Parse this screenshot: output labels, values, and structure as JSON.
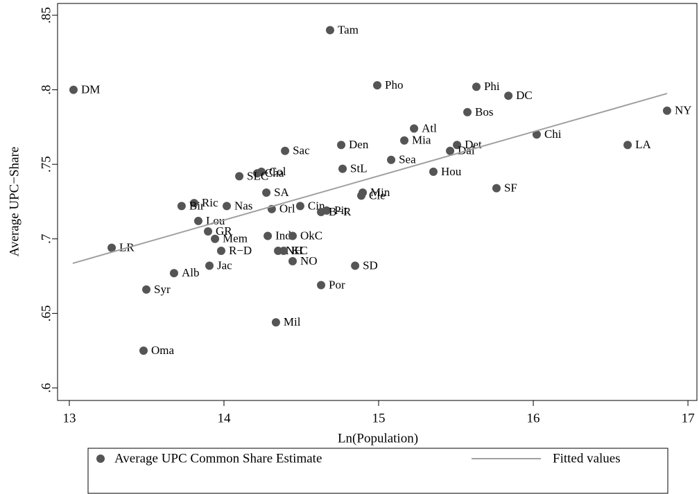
{
  "chart_data": {
    "type": "scatter",
    "x_label": "Ln(Population)",
    "y_label": "Average UPC−Share",
    "xlim": [
      12.924,
      17.058
    ],
    "ylim": [
      0.5916,
      0.8579
    ],
    "xticks": [
      13,
      14,
      15,
      16,
      17
    ],
    "yticks": [
      {
        "value": 0.6,
        "label": ".6"
      },
      {
        "value": 0.65,
        "label": ".65"
      },
      {
        "value": 0.7,
        "label": ".7"
      },
      {
        "value": 0.75,
        "label": ".75"
      },
      {
        "value": 0.8,
        "label": ".8"
      },
      {
        "value": 0.85,
        "label": ".85"
      }
    ],
    "series": [
      {
        "name": "Average UPC Common Share Estimate",
        "type": "scatter",
        "color": "#555555",
        "labels": [
          "Tam",
          "DM",
          "Pho",
          "Phi",
          "DC",
          "Bos",
          "NY",
          "Atl",
          "Mia",
          "Chi",
          "Den",
          "Det",
          "Dal",
          "LA",
          "Sac",
          "Sea",
          "StL",
          "Hou",
          "Col",
          "Cha",
          "SLC",
          "SF",
          "SA",
          "Min",
          "Cle",
          "Ric",
          "Bir",
          "Nas",
          "Cin",
          "Orl",
          "Pit",
          "B−R",
          "Lou",
          "GR",
          "Ind",
          "OkC",
          "Mem",
          "LR",
          "R−D",
          "NH",
          "KC",
          "NO",
          "SD",
          "Jac",
          "Alb",
          "Por",
          "Syr",
          "Mil",
          "Oma"
        ],
        "x": [
          14.686,
          13.027,
          14.991,
          15.632,
          15.839,
          15.574,
          16.865,
          15.229,
          15.166,
          16.022,
          14.758,
          15.507,
          15.462,
          16.61,
          14.395,
          15.081,
          14.767,
          15.354,
          14.242,
          14.215,
          14.099,
          15.762,
          14.274,
          14.897,
          14.888,
          13.807,
          13.726,
          14.018,
          14.493,
          14.309,
          14.664,
          14.628,
          13.834,
          13.897,
          14.283,
          14.444,
          13.942,
          13.274,
          13.982,
          14.35,
          14.386,
          14.444,
          14.848,
          13.906,
          13.677,
          14.628,
          13.498,
          14.336,
          13.48
        ],
        "values": [
          0.84,
          0.8,
          0.803,
          0.802,
          0.796,
          0.785,
          0.786,
          0.774,
          0.766,
          0.77,
          0.763,
          0.763,
          0.759,
          0.763,
          0.759,
          0.753,
          0.747,
          0.745,
          0.745,
          0.744,
          0.742,
          0.734,
          0.731,
          0.731,
          0.729,
          0.724,
          0.722,
          0.722,
          0.722,
          0.72,
          0.719,
          0.718,
          0.712,
          0.705,
          0.702,
          0.702,
          0.7,
          0.694,
          0.692,
          0.692,
          0.692,
          0.685,
          0.682,
          0.682,
          0.677,
          0.669,
          0.666,
          0.644,
          0.625
        ]
      },
      {
        "name": "Fitted values",
        "type": "line",
        "color": "#a0a0a0",
        "x": [
          13.022,
          16.865
        ],
        "values": [
          0.6836,
          0.7975
        ]
      }
    ]
  }
}
